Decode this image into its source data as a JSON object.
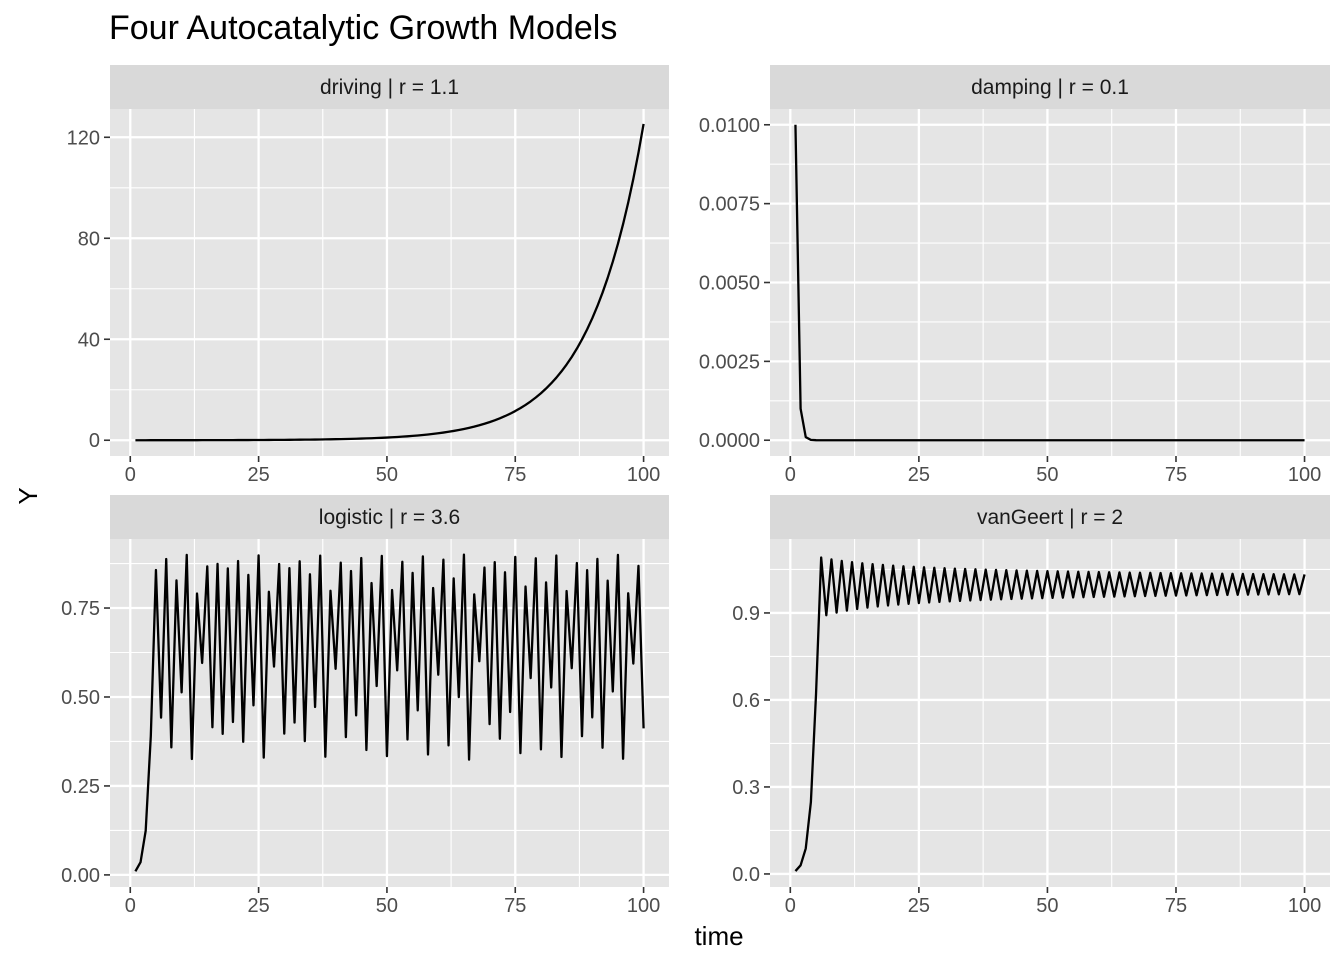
{
  "chart_data": {
    "type": "line",
    "title": "Four Autocatalytic Growth Models",
    "xlabel": "time",
    "ylabel": "Y",
    "line_color": "#000000",
    "panel_background": "#e5e5e5",
    "strip_background": "#d9d9d9",
    "grid_color": "#ffffff",
    "panels": [
      {
        "strip": "driving | r = 1.1",
        "model": "driving",
        "r": 1.1,
        "y0": 0.01,
        "n": 100,
        "xlim": [
          -3.95,
          104.95
        ],
        "ylim": [
          -6.24,
          131.2
        ],
        "x_ticks": [
          0,
          25,
          50,
          75,
          100
        ],
        "x_tick_labels": [
          "0",
          "25",
          "50",
          "75",
          "100"
        ],
        "y_ticks": [
          0,
          40,
          80,
          120
        ],
        "y_tick_labels": [
          "0",
          "40",
          "80",
          "120"
        ]
      },
      {
        "strip": "damping | r = 0.1",
        "model": "damping",
        "r": 0.1,
        "y0": 0.01,
        "n": 100,
        "xlim": [
          -3.95,
          104.95
        ],
        "ylim": [
          -0.0005,
          0.0105
        ],
        "x_ticks": [
          0,
          25,
          50,
          75,
          100
        ],
        "x_tick_labels": [
          "0",
          "25",
          "50",
          "75",
          "100"
        ],
        "y_ticks": [
          0,
          0.0025,
          0.005,
          0.0075,
          0.01
        ],
        "y_tick_labels": [
          "0.0000",
          "0.0025",
          "0.0050",
          "0.0075",
          "0.0100"
        ]
      },
      {
        "strip": "logistic | r = 3.6",
        "model": "logistic",
        "r": 3.6,
        "y0": 0.01,
        "n": 100,
        "xlim": [
          -3.95,
          104.95
        ],
        "ylim": [
          -0.034,
          0.944
        ],
        "x_ticks": [
          0,
          25,
          50,
          75,
          100
        ],
        "x_tick_labels": [
          "0",
          "25",
          "50",
          "75",
          "100"
        ],
        "y_ticks": [
          0,
          0.25,
          0.5,
          0.75
        ],
        "y_tick_labels": [
          "0.00",
          "0.25",
          "0.50",
          "0.75"
        ]
      },
      {
        "strip": "vanGeert | r = 2",
        "model": "vanGeert",
        "r": 2,
        "y0": 0.01,
        "n": 100,
        "xlim": [
          -3.95,
          104.95
        ],
        "ylim": [
          -0.045,
          1.155
        ],
        "x_ticks": [
          0,
          25,
          50,
          75,
          100
        ],
        "x_tick_labels": [
          "0",
          "25",
          "50",
          "75",
          "100"
        ],
        "y_ticks": [
          0,
          0.3,
          0.6,
          0.9
        ],
        "y_tick_labels": [
          "0.0",
          "0.3",
          "0.6",
          "0.9"
        ]
      }
    ]
  }
}
